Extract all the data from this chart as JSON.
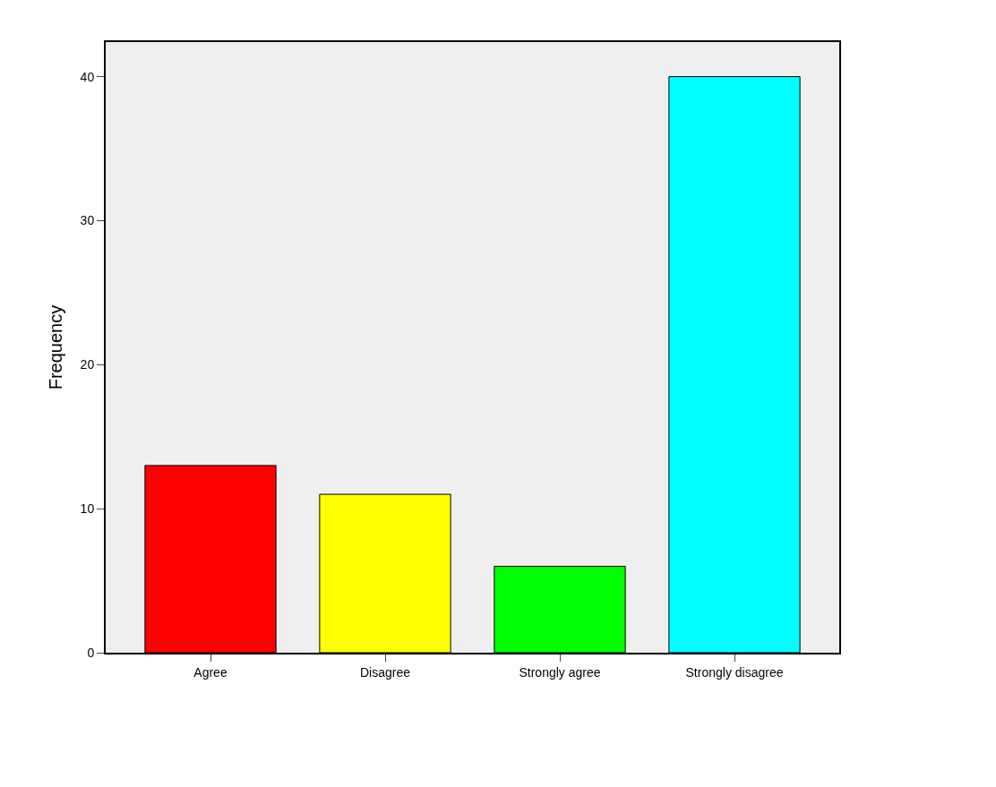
{
  "chart_data": {
    "type": "bar",
    "ylabel": "Frequency",
    "categories": [
      "Agree",
      "Disagree",
      "Strongly agree",
      "Strongly disagree"
    ],
    "values": [
      13,
      11,
      6,
      40
    ],
    "colors": [
      "#ff0000",
      "#ffff00",
      "#00ff00",
      "#00ffff"
    ],
    "ylim": [
      0,
      42.4
    ],
    "yticks": [
      0,
      10,
      20,
      30,
      40
    ],
    "grid": false
  }
}
